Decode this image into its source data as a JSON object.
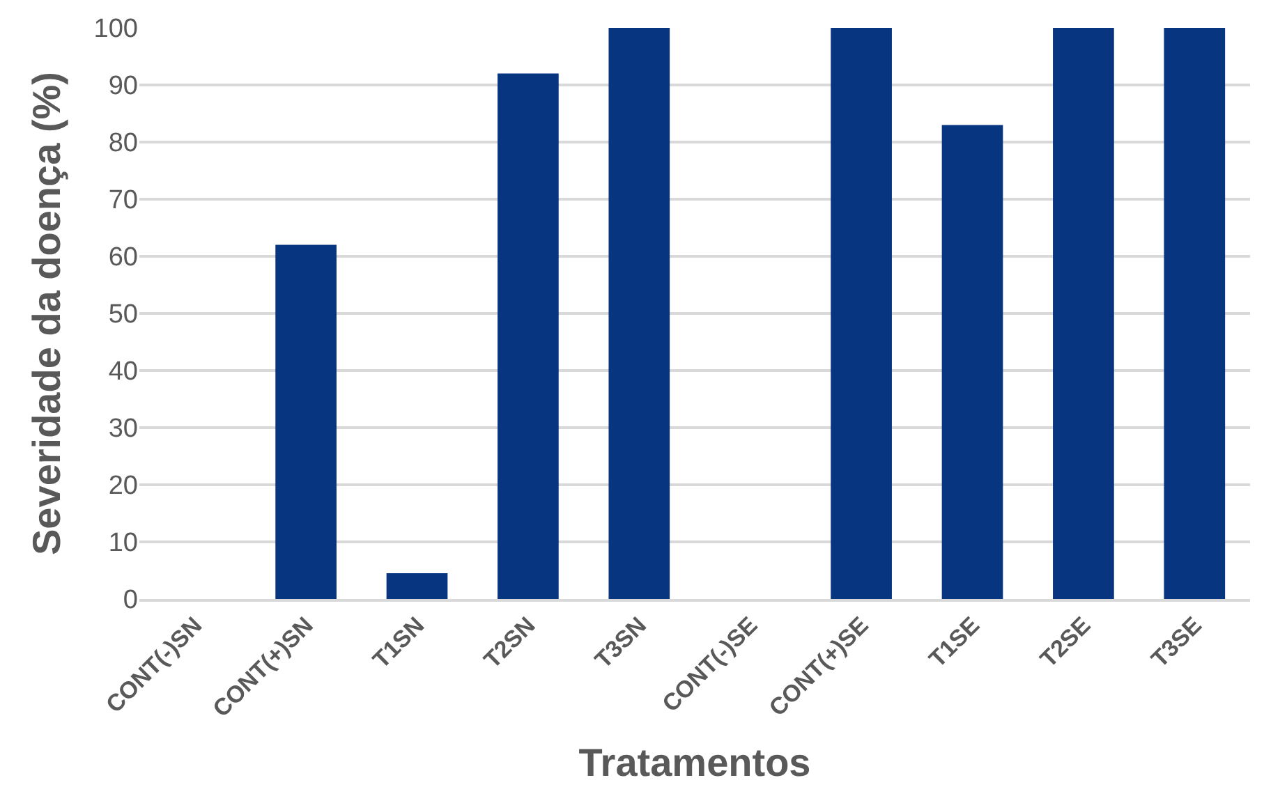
{
  "chart_data": {
    "type": "bar",
    "xlabel": "Tratamentos",
    "ylabel": "Severidade da doença (%)",
    "categories": [
      "CONT(-)SN",
      "CONT(+)SN",
      "T1SN",
      "T2SN",
      "T3SN",
      "CONT(-)SE",
      "CONT(+)SE",
      "T1SE",
      "T2SE",
      "T3SE"
    ],
    "values": [
      0,
      62,
      4.5,
      92,
      100,
      0,
      100,
      83,
      100,
      100
    ],
    "color": "#08357f",
    "ylim": [
      0,
      100
    ],
    "yticks": [
      0,
      10,
      20,
      30,
      40,
      50,
      60,
      70,
      80,
      90,
      100
    ],
    "grid": "y"
  }
}
